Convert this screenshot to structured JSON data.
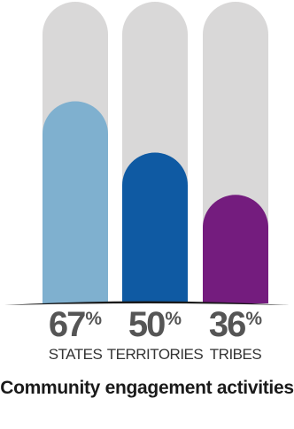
{
  "chart_data": {
    "type": "bar",
    "title": "Community engagement activities",
    "categories": [
      "STATES",
      "TERRITORIES",
      "TRIBES"
    ],
    "values": [
      67,
      50,
      36
    ],
    "value_suffix": "%",
    "ylim": [
      0,
      100
    ],
    "grid": false,
    "legend": "none",
    "colors": {
      "background_track": "#d9d8d8",
      "bars": [
        "#7fb0cf",
        "#0f5aa3",
        "#741c7e"
      ],
      "baseline": "#1a1a1a"
    }
  }
}
